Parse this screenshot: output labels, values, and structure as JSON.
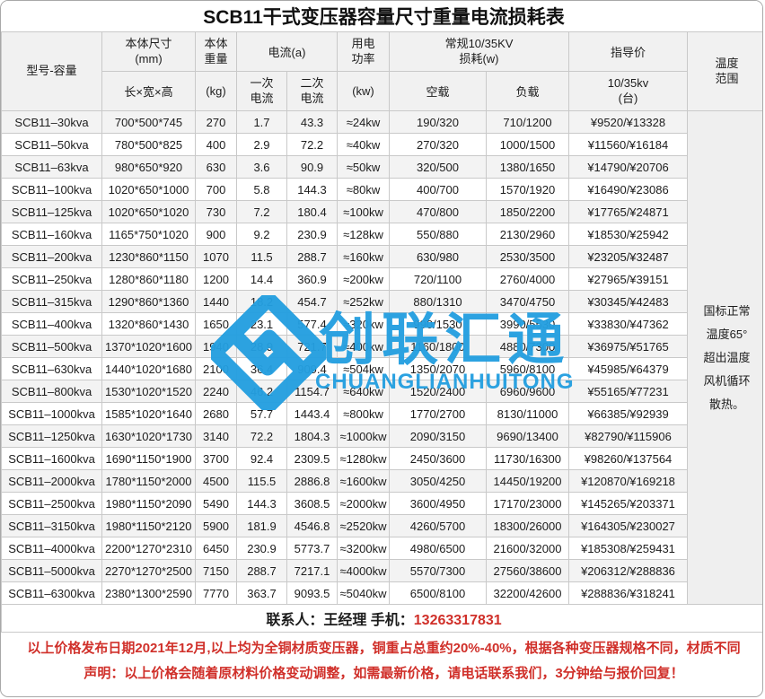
{
  "title": "SCB11干式变压器容量尺寸重量电流损耗表",
  "colors": {
    "accent_red": "#d0302a",
    "watermark_blue": "#249fe0",
    "header_bg": "#f1f1f1",
    "stripe_bg": "#f3f3f3",
    "border": "#c9c9c9"
  },
  "watermark": {
    "icon": "chuanglian-logo-icon",
    "cn": "创联汇通",
    "en": "CHUANGLIANHUITONG"
  },
  "table": {
    "header": {
      "model": "型号-容量",
      "size_l1": "本体尺寸\n(mm)",
      "size_l2": "长×宽×高",
      "weight_l1": "本体\n重量",
      "weight_l2": "(kg)",
      "current": "电流(a)",
      "current_primary": "一次\n电流",
      "current_secondary": "二次\n电流",
      "power_l1": "用电\n功率",
      "power_l2": "(kw)",
      "loss": "常规10/35KV\n损耗(w)",
      "loss_noload": "空载",
      "loss_load": "负载",
      "price": "指导价",
      "price_sub": "10/35kv\n(台)",
      "temp": "温度\n范围"
    },
    "temp_note": "国标正常\n温度65°\n超出温度\n风机循环\n散热。",
    "rows": [
      [
        "SCB11–30kva",
        "700*500*745",
        "270",
        "1.7",
        "43.3",
        "≈24kw",
        "190/320",
        "710/1200",
        "¥9520/¥13328"
      ],
      [
        "SCB11–50kva",
        "780*500*825",
        "400",
        "2.9",
        "72.2",
        "≈40kw",
        "270/320",
        "1000/1500",
        "¥11560/¥16184"
      ],
      [
        "SCB11–63kva",
        "980*650*920",
        "630",
        "3.6",
        "90.9",
        "≈50kw",
        "320/500",
        "1380/1650",
        "¥14790/¥20706"
      ],
      [
        "SCB11–100kva",
        "1020*650*1000",
        "700",
        "5.8",
        "144.3",
        "≈80kw",
        "400/700",
        "1570/1920",
        "¥16490/¥23086"
      ],
      [
        "SCB11–125kva",
        "1020*650*1020",
        "730",
        "7.2",
        "180.4",
        "≈100kw",
        "470/800",
        "1850/2200",
        "¥17765/¥24871"
      ],
      [
        "SCB11–160kva",
        "1165*750*1020",
        "900",
        "9.2",
        "230.9",
        "≈128kw",
        "550/880",
        "2130/2960",
        "¥18530/¥25942"
      ],
      [
        "SCB11–200kva",
        "1230*860*1150",
        "1070",
        "11.5",
        "288.7",
        "≈160kw",
        "630/980",
        "2530/3500",
        "¥23205/¥32487"
      ],
      [
        "SCB11–250kva",
        "1280*860*1180",
        "1200",
        "14.4",
        "360.9",
        "≈200kw",
        "720/1100",
        "2760/4000",
        "¥27965/¥39151"
      ],
      [
        "SCB11–315kva",
        "1290*860*1360",
        "1440",
        "18.2",
        "454.7",
        "≈252kw",
        "880/1310",
        "3470/4750",
        "¥30345/¥42483"
      ],
      [
        "SCB11–400kva",
        "1320*860*1430",
        "1650",
        "23.1",
        "577.4",
        "≈320kw",
        "990/1530",
        "3990/5530",
        "¥33830/¥47362"
      ],
      [
        "SCB11–500kva",
        "1370*1020*1600",
        "1940",
        "28.9",
        "721.7",
        "≈400kw",
        "1160/1800",
        "4880/7300",
        "¥36975/¥51765"
      ],
      [
        "SCB11–630kva",
        "1440*1020*1680",
        "2100",
        "36.4",
        "909.4",
        "≈504kw",
        "1350/2070",
        "5960/8100",
        "¥45985/¥64379"
      ],
      [
        "SCB11–800kva",
        "1530*1020*1520",
        "2240",
        "46.2",
        "1154.7",
        "≈640kw",
        "1520/2400",
        "6960/9600",
        "¥55165/¥77231"
      ],
      [
        "SCB11–1000kva",
        "1585*1020*1640",
        "2680",
        "57.7",
        "1443.4",
        "≈800kw",
        "1770/2700",
        "8130/11000",
        "¥66385/¥92939"
      ],
      [
        "SCB11–1250kva",
        "1630*1020*1730",
        "3140",
        "72.2",
        "1804.3",
        "≈1000kw",
        "2090/3150",
        "9690/13400",
        "¥82790/¥115906"
      ],
      [
        "SCB11–1600kva",
        "1690*1150*1900",
        "3700",
        "92.4",
        "2309.5",
        "≈1280kw",
        "2450/3600",
        "11730/16300",
        "¥98260/¥137564"
      ],
      [
        "SCB11–2000kva",
        "1780*1150*2000",
        "4500",
        "115.5",
        "2886.8",
        "≈1600kw",
        "3050/4250",
        "14450/19200",
        "¥120870/¥169218"
      ],
      [
        "SCB11–2500kva",
        "1980*1150*2090",
        "5490",
        "144.3",
        "3608.5",
        "≈2000kw",
        "3600/4950",
        "17170/23000",
        "¥145265/¥203371"
      ],
      [
        "SCB11–3150kva",
        "1980*1150*2120",
        "5900",
        "181.9",
        "4546.8",
        "≈2520kw",
        "4260/5700",
        "18300/26000",
        "¥164305/¥230027"
      ],
      [
        "SCB11–4000kva",
        "2200*1270*2310",
        "6450",
        "230.9",
        "5773.7",
        "≈3200kw",
        "4980/6500",
        "21600/32000",
        "¥185308/¥259431"
      ],
      [
        "SCB11–5000kva",
        "2270*1270*2500",
        "7150",
        "288.7",
        "7217.1",
        "≈4000kw",
        "5570/7300",
        "27560/38600",
        "¥206312/¥288836"
      ],
      [
        "SCB11–6300kva",
        "2380*1300*2590",
        "7770",
        "363.7",
        "9093.5",
        "≈5040kw",
        "6500/8100",
        "32200/42600",
        "¥288836/¥318241"
      ]
    ]
  },
  "contact": {
    "label": "联系人：王经理 手机：",
    "phone": "13263317831"
  },
  "notice": {
    "line1": "以上价格发布日期2021年12月,以上均为全铜材质变压器，铜重占总重约20%-40%，根据各种变压器规格不同，材质不同",
    "line2": "声明：以上价格会随着原材料价格变动调整，如需最新价格，请电话联系我们，3分钟给与报价回复！"
  }
}
